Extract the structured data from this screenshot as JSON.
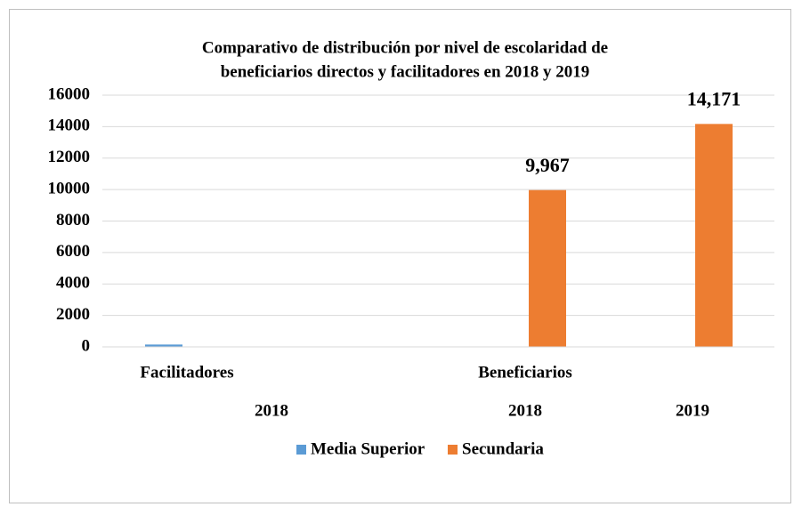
{
  "chart_data": {
    "type": "bar",
    "title": [
      "Comparativo de distribución por nivel de escolaridad de",
      "beneficiarios directos y facilitadores en 2018 y 2019"
    ],
    "groups": [
      "Facilitadores",
      "Beneficiarios"
    ],
    "categories": [
      "2018",
      "2018",
      "2019"
    ],
    "series": [
      {
        "name": "Media Superior",
        "color": "#5b9bd5",
        "values": [
          150,
          null,
          null
        ]
      },
      {
        "name": "Secundaria",
        "color": "#ed7d31",
        "values": [
          null,
          9967,
          14171
        ],
        "value_labels": [
          null,
          "9,967",
          "14,171"
        ]
      }
    ],
    "ylim": [
      0,
      16000
    ],
    "yticks": [
      0,
      2000,
      4000,
      6000,
      8000,
      10000,
      12000,
      14000,
      16000
    ],
    "grid": true,
    "legend": "bottom"
  }
}
